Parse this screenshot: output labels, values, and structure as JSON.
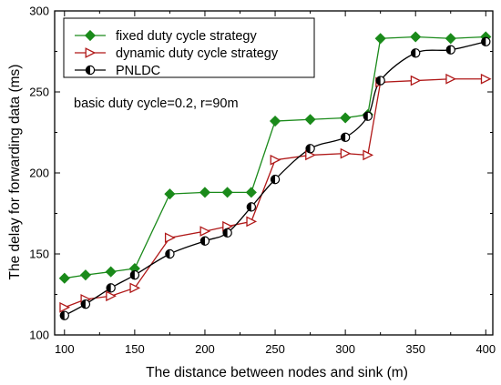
{
  "chart_data": {
    "type": "line",
    "title": "",
    "xlabel": "The distance between nodes and sink (m)",
    "ylabel": "The delay for forwarding data (ms)",
    "xlim": [
      93,
      405
    ],
    "ylim": [
      100,
      300
    ],
    "x_ticks": [
      100,
      150,
      200,
      250,
      300,
      350,
      400
    ],
    "y_ticks": [
      100,
      150,
      200,
      250,
      300
    ],
    "grid": false,
    "legend_position": "top-left",
    "annotation": "basic duty cycle=0.2, r=90m",
    "series": [
      {
        "name": "fixed duty cycle strategy",
        "color": "#1a8a1a",
        "marker": "diamond",
        "x": [
          100,
          115,
          133,
          150,
          175,
          200,
          216,
          233,
          250,
          275,
          300,
          316,
          325,
          350,
          375,
          400
        ],
        "y": [
          135,
          137,
          139,
          141,
          187,
          188,
          188,
          188,
          232,
          233,
          234,
          236,
          283,
          284,
          283,
          284
        ]
      },
      {
        "name": "dynamic duty cycle strategy",
        "color": "#b01818",
        "marker": "triangle-right",
        "x": [
          100,
          115,
          133,
          150,
          175,
          200,
          216,
          233,
          250,
          275,
          300,
          316,
          325,
          350,
          375,
          400
        ],
        "y": [
          117,
          122,
          124,
          129,
          160,
          164,
          167,
          170,
          208,
          211,
          212,
          211,
          256,
          257,
          258,
          258
        ]
      },
      {
        "name": "PNLDC",
        "color": "#000000",
        "marker": "half-circle",
        "x": [
          100,
          115,
          133,
          150,
          175,
          200,
          216,
          233,
          250,
          275,
          300,
          316,
          325,
          350,
          375,
          400
        ],
        "y": [
          112,
          119,
          129,
          137,
          150,
          158,
          163,
          179,
          196,
          215,
          222,
          235,
          257,
          274,
          276,
          281
        ]
      }
    ]
  }
}
